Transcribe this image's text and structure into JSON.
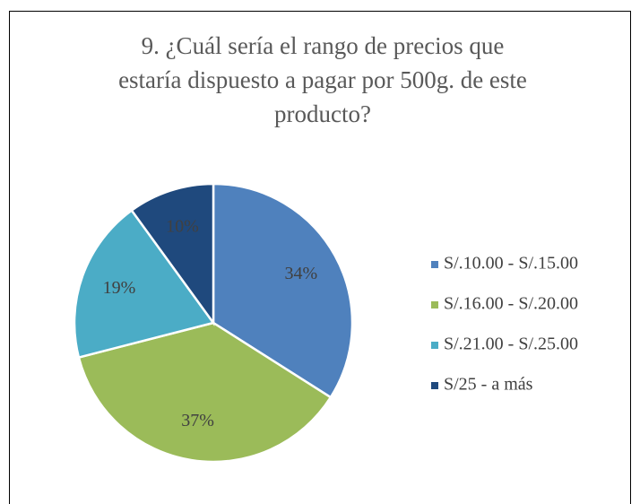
{
  "chart_data": {
    "type": "pie",
    "title": "9. ¿Cuál sería el rango de precios que\nestaría dispuesto a pagar por 500g. de este\nproducto?",
    "categories": [
      "S/.10.00 - S/.15.00",
      "S/.16.00 - S/.20.00",
      "S/.21.00 - S/.25.00",
      "S/25 - a más"
    ],
    "values": [
      34,
      37,
      19,
      10
    ],
    "value_labels": [
      "34%",
      "37%",
      "19%",
      "10%"
    ],
    "colors": [
      "#4f81bd",
      "#9bbb59",
      "#4bacc6",
      "#1f497d"
    ],
    "legend": "right"
  }
}
